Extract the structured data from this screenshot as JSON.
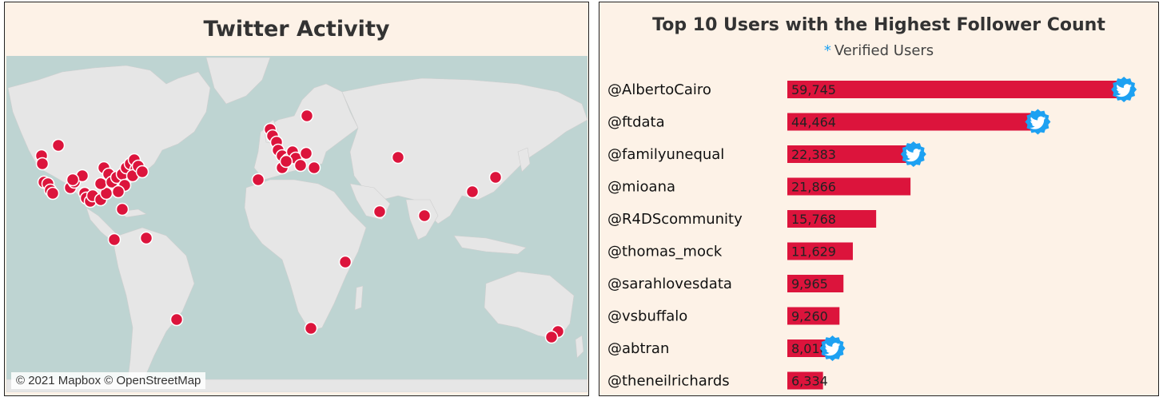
{
  "map_panel": {
    "title": "Twitter Activity",
    "attribution": "© 2021 Mapbox © OpenStreetMap",
    "dot_color": "#dc143c",
    "land_color": "#e6e6e6",
    "water_color": "#bed4d2"
  },
  "chart_data": {
    "type": "bar",
    "orientation": "horizontal",
    "title": "Top 10 Users with the Highest Follower Count",
    "subtitle_marker": "*",
    "subtitle": "Verified Users",
    "bar_color": "#dc143c",
    "badge_color": "#1da1f2",
    "categories": [
      "@AlbertoCairo",
      "@ftdata",
      "@familyunequal",
      "@mioana",
      "@R4DScommunity",
      "@thomas_mock",
      "@sarahlovesdata",
      "@vsbuffalo",
      "@abtran",
      "@theneilrichards"
    ],
    "values": [
      59745,
      44464,
      22383,
      21866,
      15768,
      11629,
      9965,
      9260,
      8018,
      6334
    ],
    "value_labels": [
      "59,745",
      "44,464",
      "22,383",
      "21,866",
      "15,768",
      "11,629",
      "9,965",
      "9,260",
      "8,018",
      "6,334"
    ],
    "verified": [
      true,
      true,
      true,
      false,
      false,
      false,
      false,
      false,
      true,
      false
    ],
    "xlim": [
      0,
      62000
    ]
  }
}
